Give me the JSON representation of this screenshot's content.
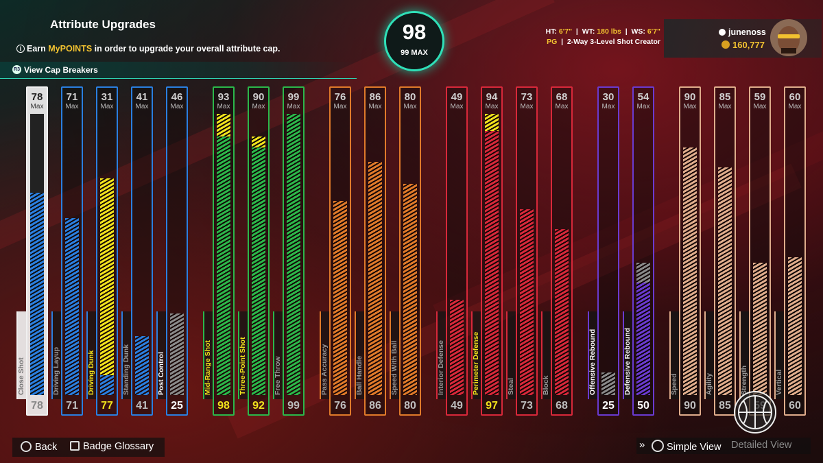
{
  "header": {
    "title": "Attribute Upgrades",
    "info_prefix": "Earn ",
    "info_highlight": "MyPOINTS",
    "info_suffix": " in order to upgrade your overall attribute cap.",
    "cap_breakers_label": "View Cap Breakers",
    "cap_breakers_icon": "cap-breaker-icon"
  },
  "overall": {
    "value": "98",
    "max_label": "99 MAX"
  },
  "player": {
    "ht_label": "HT:",
    "ht_value": "6'7\"",
    "wt_label": "WT:",
    "wt_value": "180 lbs",
    "ws_label": "WS:",
    "ws_value": "6'7\"",
    "position": "PG",
    "archetype": "2-Way 3-Level Shot Creator"
  },
  "user": {
    "username": "junenoss",
    "vc": "160,777"
  },
  "max_label": "Max",
  "colors": {
    "inside": "#2a7fe0",
    "mid": "#2bb84a",
    "play": "#e07a2a",
    "defense": "#d8283a",
    "rebound": "#6a3ad0",
    "physical": "#e0ad8c",
    "upgrade": "#f2e31c",
    "capbreak": "#8a8a8a",
    "accent": "#2fe0b8"
  },
  "attributes": [
    {
      "name": "Close Shot",
      "max": "78",
      "current": "78",
      "fill": 72,
      "bonus": 0,
      "group": "inside",
      "selected": true
    },
    {
      "name": "Driving Layup",
      "max": "71",
      "current": "71",
      "fill": 63,
      "bonus": 0,
      "group": "inside"
    },
    {
      "name": "Driving Dunk",
      "max": "31",
      "current": "77",
      "fill": 7,
      "bonus": 70,
      "group": "inside",
      "upgraded": true
    },
    {
      "name": "Standing Dunk",
      "max": "41",
      "current": "41",
      "fill": 21,
      "bonus": 0,
      "group": "inside"
    },
    {
      "name": "Post Control",
      "max": "46",
      "current": "25",
      "fill": 0,
      "bonus": 29,
      "group": "inside",
      "capbreak": true
    },
    {
      "name": "Mid-Range Shot",
      "max": "93",
      "current": "98",
      "fill": 92,
      "bonus": 8,
      "group": "mid",
      "upgraded": true
    },
    {
      "name": "Three-Point Shot",
      "max": "90",
      "current": "92",
      "fill": 88,
      "bonus": 4,
      "group": "mid",
      "upgraded": true
    },
    {
      "name": "Free Throw",
      "max": "99",
      "current": "99",
      "fill": 100,
      "bonus": 0,
      "group": "mid"
    },
    {
      "name": "Pass Accuracy",
      "max": "76",
      "current": "76",
      "fill": 69,
      "bonus": 0,
      "group": "play"
    },
    {
      "name": "Ball Handle",
      "max": "86",
      "current": "86",
      "fill": 83,
      "bonus": 0,
      "group": "play"
    },
    {
      "name": "Speed With Ball",
      "max": "80",
      "current": "80",
      "fill": 75,
      "bonus": 0,
      "group": "play"
    },
    {
      "name": "Interior Defense",
      "max": "49",
      "current": "49",
      "fill": 34,
      "bonus": 0,
      "group": "defense"
    },
    {
      "name": "Perimeter Defense",
      "max": "94",
      "current": "97",
      "fill": 94,
      "bonus": 6,
      "group": "defense",
      "upgraded": true
    },
    {
      "name": "Steal",
      "max": "73",
      "current": "73",
      "fill": 66,
      "bonus": 0,
      "group": "defense"
    },
    {
      "name": "Block",
      "max": "68",
      "current": "68",
      "fill": 59,
      "bonus": 0,
      "group": "defense"
    },
    {
      "name": "Offensive Rebound",
      "max": "30",
      "current": "25",
      "fill": 0,
      "bonus": 8,
      "group": "rebound",
      "capbreak": true
    },
    {
      "name": "Defensive Rebound",
      "max": "54",
      "current": "50",
      "fill": 40,
      "bonus": 7,
      "group": "rebound",
      "capbreak": true
    },
    {
      "name": "Speed",
      "max": "90",
      "current": "90",
      "fill": 88,
      "bonus": 0,
      "group": "physical"
    },
    {
      "name": "Agility",
      "max": "85",
      "current": "85",
      "fill": 81,
      "bonus": 0,
      "group": "physical"
    },
    {
      "name": "Strength",
      "max": "59",
      "current": "59",
      "fill": 47,
      "bonus": 0,
      "group": "physical"
    },
    {
      "name": "Vertical",
      "max": "60",
      "current": "60",
      "fill": 49,
      "bonus": 0,
      "group": "physical"
    }
  ],
  "footer": {
    "back_label": "Back",
    "glossary_label": "Badge Glossary",
    "simple_view_label": "Simple View",
    "detailed_view_label": "Detailed View"
  }
}
